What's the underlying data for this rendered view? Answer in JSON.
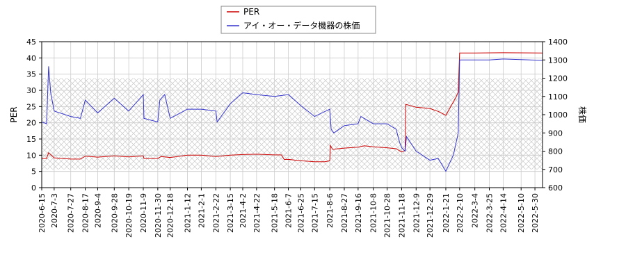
{
  "chart_data": {
    "type": "line",
    "xlabel": "",
    "ylabel_left": "PER",
    "ylabel_right": "株価",
    "y_left_range": [
      0,
      45
    ],
    "y_right_range": [
      600,
      1400
    ],
    "y_left_ticks": [
      0,
      5,
      10,
      15,
      20,
      25,
      30,
      35,
      40,
      45
    ],
    "y_right_ticks": [
      600,
      700,
      800,
      900,
      1000,
      1100,
      1200,
      1300,
      1400
    ],
    "x_range": [
      "2020-06-15",
      "2022-06-10"
    ],
    "x_ticks": [
      "2020-6-15",
      "2020-7-3",
      "2020-7-27",
      "2020-8-17",
      "2020-9-4",
      "2020-9-28",
      "2020-10-19",
      "2020-11-9",
      "2020-11-30",
      "2020-12-18",
      "2021-1-12",
      "2021-2-1",
      "2021-2-22",
      "2021-3-15",
      "2021-4-2",
      "2021-4-22",
      "2021-5-18",
      "2021-6-7",
      "2021-6-25",
      "2021-7-15",
      "2021-8-6",
      "2021-8-27",
      "2021-9-16",
      "2021-10-8",
      "2021-10-28",
      "2021-11-18",
      "2021-12-9",
      "2021-12-29",
      "2022-1-21",
      "2022-2-10",
      "2022-3-4",
      "2022-3-25",
      "2022-4-14",
      "2022-5-10",
      "2022-5-30"
    ],
    "legend_position": "top-center",
    "grid": true,
    "hatched_band_right_axis": [
      700,
      1200
    ],
    "series": [
      {
        "name": "PER",
        "axis": "left",
        "color": "#cc0000",
        "points": [
          [
            "2020-6-15",
            9.0
          ],
          [
            "2020-6-22",
            9.0
          ],
          [
            "2020-6-25",
            10.8
          ],
          [
            "2020-7-3",
            9.2
          ],
          [
            "2020-7-27",
            8.8
          ],
          [
            "2020-8-10",
            8.8
          ],
          [
            "2020-8-17",
            9.7
          ],
          [
            "2020-9-4",
            9.4
          ],
          [
            "2020-9-28",
            9.8
          ],
          [
            "2020-10-19",
            9.5
          ],
          [
            "2020-11-9",
            9.8
          ],
          [
            "2020-11-10",
            9.0
          ],
          [
            "2020-11-30",
            9.0
          ],
          [
            "2020-12-5",
            9.6
          ],
          [
            "2020-12-18",
            9.3
          ],
          [
            "2021-1-12",
            10.0
          ],
          [
            "2021-2-1",
            10.0
          ],
          [
            "2021-2-22",
            9.6
          ],
          [
            "2021-3-15",
            10.0
          ],
          [
            "2021-4-2",
            10.2
          ],
          [
            "2021-4-22",
            10.3
          ],
          [
            "2021-5-18",
            10.1
          ],
          [
            "2021-5-28",
            10.1
          ],
          [
            "2021-6-1",
            8.7
          ],
          [
            "2021-6-7",
            8.7
          ],
          [
            "2021-6-25",
            8.3
          ],
          [
            "2021-7-15",
            8.0
          ],
          [
            "2021-7-30",
            8.0
          ],
          [
            "2021-8-6",
            8.3
          ],
          [
            "2021-8-7",
            13.0
          ],
          [
            "2021-8-10",
            11.8
          ],
          [
            "2021-8-27",
            12.2
          ],
          [
            "2021-9-16",
            12.5
          ],
          [
            "2021-9-25",
            12.9
          ],
          [
            "2021-10-8",
            12.6
          ],
          [
            "2021-10-28",
            12.3
          ],
          [
            "2021-11-10",
            12.0
          ],
          [
            "2021-11-18",
            11.0
          ],
          [
            "2021-11-23",
            11.5
          ],
          [
            "2021-11-24",
            25.7
          ],
          [
            "2021-12-9",
            24.8
          ],
          [
            "2021-12-29",
            24.4
          ],
          [
            "2022-1-10",
            23.5
          ],
          [
            "2022-1-21",
            22.3
          ],
          [
            "2022-2-5",
            28.0
          ],
          [
            "2022-2-8",
            29.5
          ],
          [
            "2022-2-10",
            41.5
          ],
          [
            "2022-3-4",
            41.5
          ],
          [
            "2022-4-14",
            41.6
          ],
          [
            "2022-6-10",
            41.5
          ]
        ]
      },
      {
        "name": "アイ・オー・データ機器の株価",
        "axis": "right",
        "color": "#3333cc",
        "points": [
          [
            "2020-6-15",
            960
          ],
          [
            "2020-6-22",
            950
          ],
          [
            "2020-6-25",
            1265
          ],
          [
            "2020-6-28",
            1120
          ],
          [
            "2020-7-3",
            1020
          ],
          [
            "2020-7-27",
            990
          ],
          [
            "2020-8-10",
            980
          ],
          [
            "2020-8-17",
            1080
          ],
          [
            "2020-9-4",
            1010
          ],
          [
            "2020-9-28",
            1090
          ],
          [
            "2020-10-19",
            1020
          ],
          [
            "2020-11-9",
            1110
          ],
          [
            "2020-11-10",
            980
          ],
          [
            "2020-11-30",
            960
          ],
          [
            "2020-12-3",
            1080
          ],
          [
            "2020-12-10",
            1110
          ],
          [
            "2020-12-18",
            980
          ],
          [
            "2021-1-12",
            1030
          ],
          [
            "2021-2-1",
            1030
          ],
          [
            "2021-2-22",
            1020
          ],
          [
            "2021-2-24",
            960
          ],
          [
            "2021-3-15",
            1060
          ],
          [
            "2021-4-2",
            1120
          ],
          [
            "2021-4-22",
            1110
          ],
          [
            "2021-5-18",
            1100
          ],
          [
            "2021-6-7",
            1110
          ],
          [
            "2021-6-25",
            1050
          ],
          [
            "2021-7-15",
            990
          ],
          [
            "2021-8-6",
            1030
          ],
          [
            "2021-8-8",
            920
          ],
          [
            "2021-8-12",
            900
          ],
          [
            "2021-8-27",
            940
          ],
          [
            "2021-9-16",
            950
          ],
          [
            "2021-9-20",
            990
          ],
          [
            "2021-10-8",
            950
          ],
          [
            "2021-10-28",
            950
          ],
          [
            "2021-11-10",
            920
          ],
          [
            "2021-11-15",
            850
          ],
          [
            "2021-11-18",
            820
          ],
          [
            "2021-11-23",
            800
          ],
          [
            "2021-11-25",
            880
          ],
          [
            "2021-12-9",
            800
          ],
          [
            "2021-12-29",
            750
          ],
          [
            "2022-1-10",
            760
          ],
          [
            "2022-1-21",
            690
          ],
          [
            "2022-2-1",
            780
          ],
          [
            "2022-2-8",
            900
          ],
          [
            "2022-2-10",
            1300
          ],
          [
            "2022-3-4",
            1300
          ],
          [
            "2022-3-25",
            1300
          ],
          [
            "2022-4-14",
            1305
          ],
          [
            "2022-6-10",
            1298
          ]
        ]
      }
    ]
  }
}
